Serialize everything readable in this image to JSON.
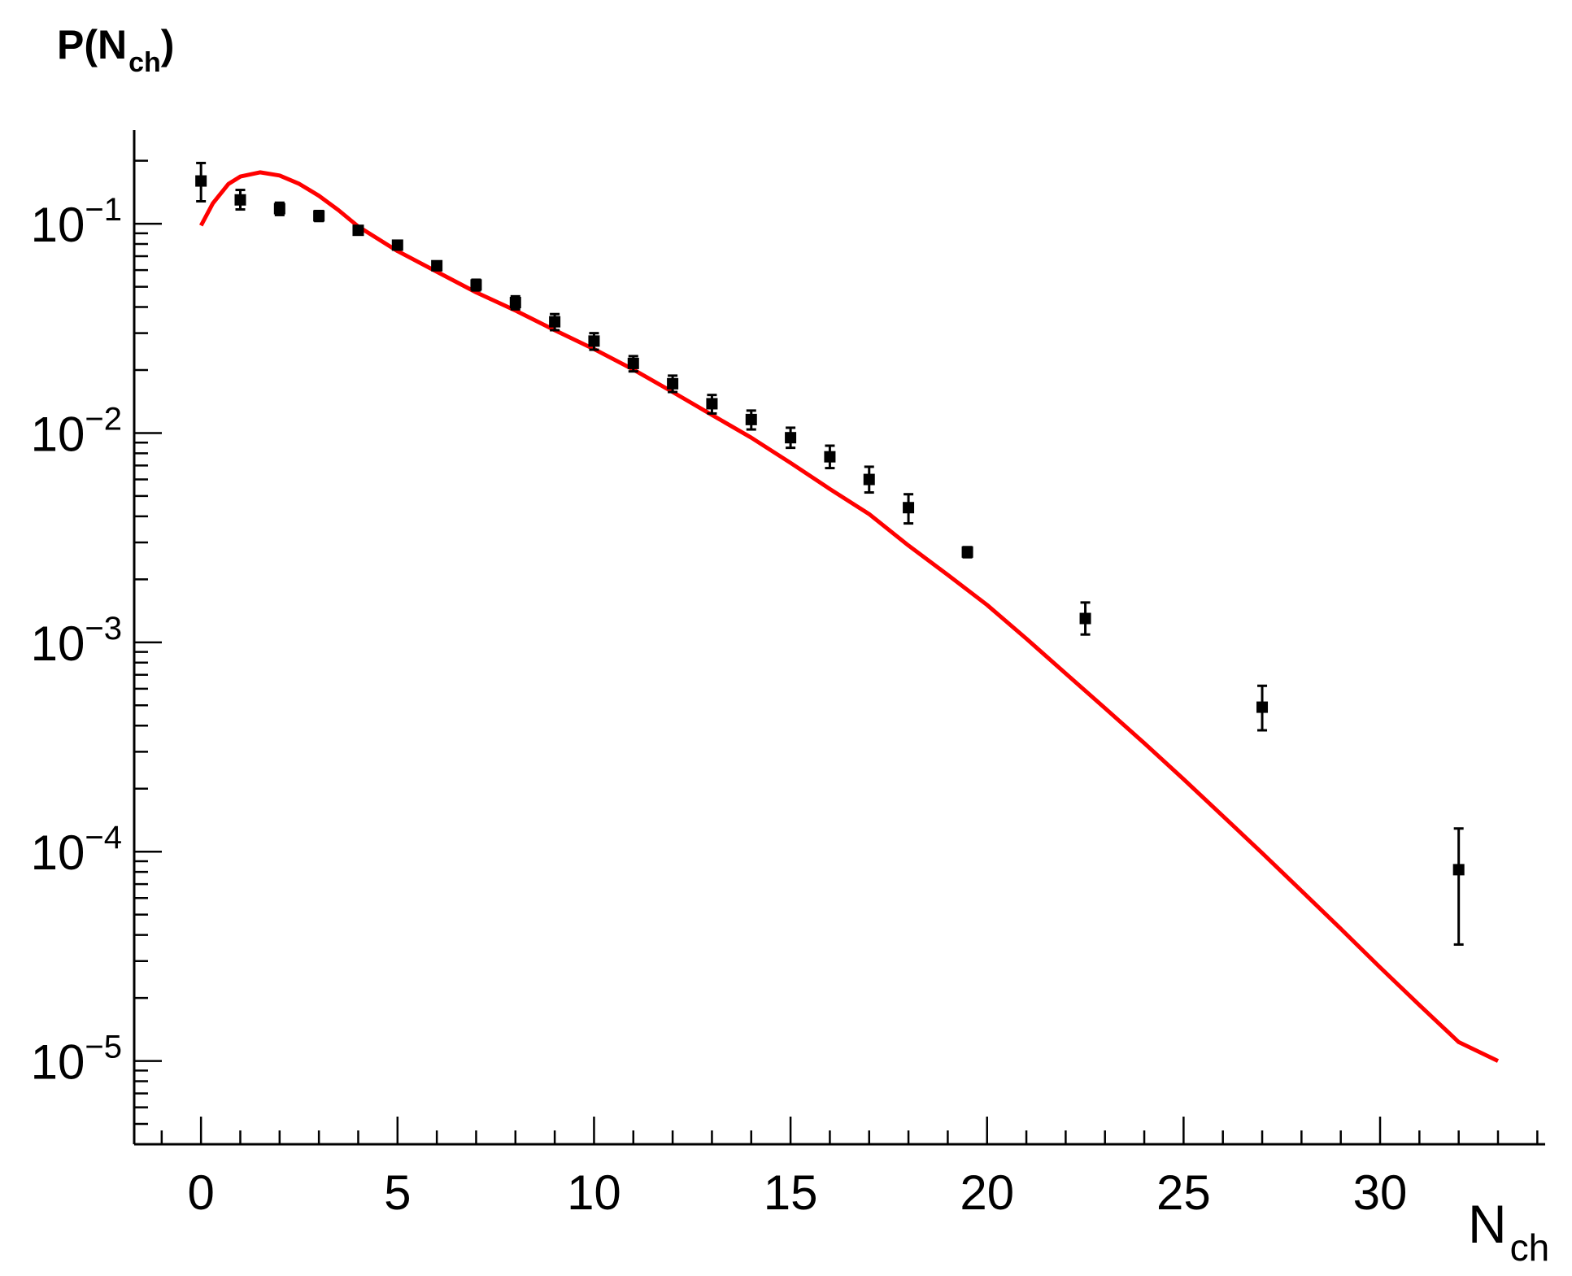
{
  "chart_data": {
    "type": "scatter",
    "title": "",
    "xlabel": {
      "main": "N",
      "sub": "ch"
    },
    "ylabel": {
      "main": "P(N",
      "sub": "ch",
      "close": ")"
    },
    "x_scale": "linear",
    "y_scale": "log",
    "xlim": [
      -1.7,
      34.2
    ],
    "ylim": [
      4e-06,
      0.28
    ],
    "grid": false,
    "legend": "none",
    "x_ticks": [
      0,
      5,
      10,
      15,
      20,
      25,
      30
    ],
    "x_tick_labels": [
      "0",
      "5",
      "10",
      "15",
      "20",
      "25",
      "30"
    ],
    "y_ticks": [
      0.1,
      0.01,
      0.001,
      0.0001,
      1e-05
    ],
    "y_tick_labels": [
      {
        "base": "10",
        "exp": "−1"
      },
      {
        "base": "10",
        "exp": "−2"
      },
      {
        "base": "10",
        "exp": "−3"
      },
      {
        "base": "10",
        "exp": "−4"
      },
      {
        "base": "10",
        "exp": "−5"
      }
    ],
    "series": [
      {
        "kind": "points-with-errors",
        "color": "#000000",
        "points": [
          {
            "x": 0,
            "y": 0.16,
            "ylo": 0.128,
            "yhi": 0.195
          },
          {
            "x": 1,
            "y": 0.13,
            "ylo": 0.117,
            "yhi": 0.145
          },
          {
            "x": 2,
            "y": 0.118,
            "ylo": 0.11,
            "yhi": 0.126
          },
          {
            "x": 3,
            "y": 0.109,
            "ylo": 0.103,
            "yhi": 0.115
          },
          {
            "x": 4,
            "y": 0.093,
            "ylo": 0.089,
            "yhi": 0.097
          },
          {
            "x": 5,
            "y": 0.079,
            "ylo": 0.076,
            "yhi": 0.082
          },
          {
            "x": 6,
            "y": 0.063,
            "ylo": 0.06,
            "yhi": 0.066
          },
          {
            "x": 7,
            "y": 0.051,
            "ylo": 0.048,
            "yhi": 0.054
          },
          {
            "x": 8,
            "y": 0.042,
            "ylo": 0.039,
            "yhi": 0.045
          },
          {
            "x": 9,
            "y": 0.034,
            "ylo": 0.031,
            "yhi": 0.037
          },
          {
            "x": 10,
            "y": 0.0275,
            "ylo": 0.025,
            "yhi": 0.03
          },
          {
            "x": 11,
            "y": 0.0215,
            "ylo": 0.0197,
            "yhi": 0.0233
          },
          {
            "x": 12,
            "y": 0.0172,
            "ylo": 0.0157,
            "yhi": 0.0188
          },
          {
            "x": 13,
            "y": 0.0138,
            "ylo": 0.0124,
            "yhi": 0.0152
          },
          {
            "x": 14,
            "y": 0.0116,
            "ylo": 0.0104,
            "yhi": 0.0128
          },
          {
            "x": 15,
            "y": 0.0095,
            "ylo": 0.0085,
            "yhi": 0.0106
          },
          {
            "x": 16,
            "y": 0.0077,
            "ylo": 0.0068,
            "yhi": 0.0087
          },
          {
            "x": 17,
            "y": 0.006,
            "ylo": 0.0052,
            "yhi": 0.0069
          },
          {
            "x": 18,
            "y": 0.0044,
            "ylo": 0.0037,
            "yhi": 0.0051
          },
          {
            "x": 19.5,
            "y": 0.0027,
            "ylo": 0.00255,
            "yhi": 0.00285
          },
          {
            "x": 22.5,
            "y": 0.0013,
            "ylo": 0.00109,
            "yhi": 0.00155
          },
          {
            "x": 27,
            "y": 0.00049,
            "ylo": 0.00038,
            "yhi": 0.00062
          },
          {
            "x": 32,
            "y": 8.2e-05,
            "ylo": 3.6e-05,
            "yhi": 0.000129
          }
        ]
      },
      {
        "kind": "curve",
        "color": "#ff0000",
        "points": [
          [
            0,
            0.098
          ],
          [
            0.3,
            0.125
          ],
          [
            0.7,
            0.155
          ],
          [
            1.0,
            0.168
          ],
          [
            1.5,
            0.176
          ],
          [
            2.0,
            0.17
          ],
          [
            2.5,
            0.155
          ],
          [
            3.0,
            0.136
          ],
          [
            3.5,
            0.116
          ],
          [
            4.0,
            0.097
          ],
          [
            5,
            0.074
          ],
          [
            6,
            0.059
          ],
          [
            7,
            0.047
          ],
          [
            8,
            0.0385
          ],
          [
            9,
            0.031
          ],
          [
            10,
            0.0252
          ],
          [
            11,
            0.0201
          ],
          [
            12,
            0.0157
          ],
          [
            13,
            0.0122
          ],
          [
            14,
            0.0095
          ],
          [
            15,
            0.0072
          ],
          [
            16,
            0.0054
          ],
          [
            17,
            0.0041
          ],
          [
            18,
            0.0029
          ],
          [
            19,
            0.0021
          ],
          [
            20,
            0.00151
          ],
          [
            21,
            0.00104
          ],
          [
            22,
            0.00071
          ],
          [
            23,
            0.000485
          ],
          [
            24,
            0.00033
          ],
          [
            25,
            0.000222
          ],
          [
            26,
            0.000148
          ],
          [
            27,
            9.85e-05
          ],
          [
            28,
            6.5e-05
          ],
          [
            29,
            4.28e-05
          ],
          [
            30,
            2.8e-05
          ],
          [
            31,
            1.85e-05
          ],
          [
            32,
            1.23e-05
          ],
          [
            33,
            1e-05
          ]
        ]
      }
    ]
  }
}
